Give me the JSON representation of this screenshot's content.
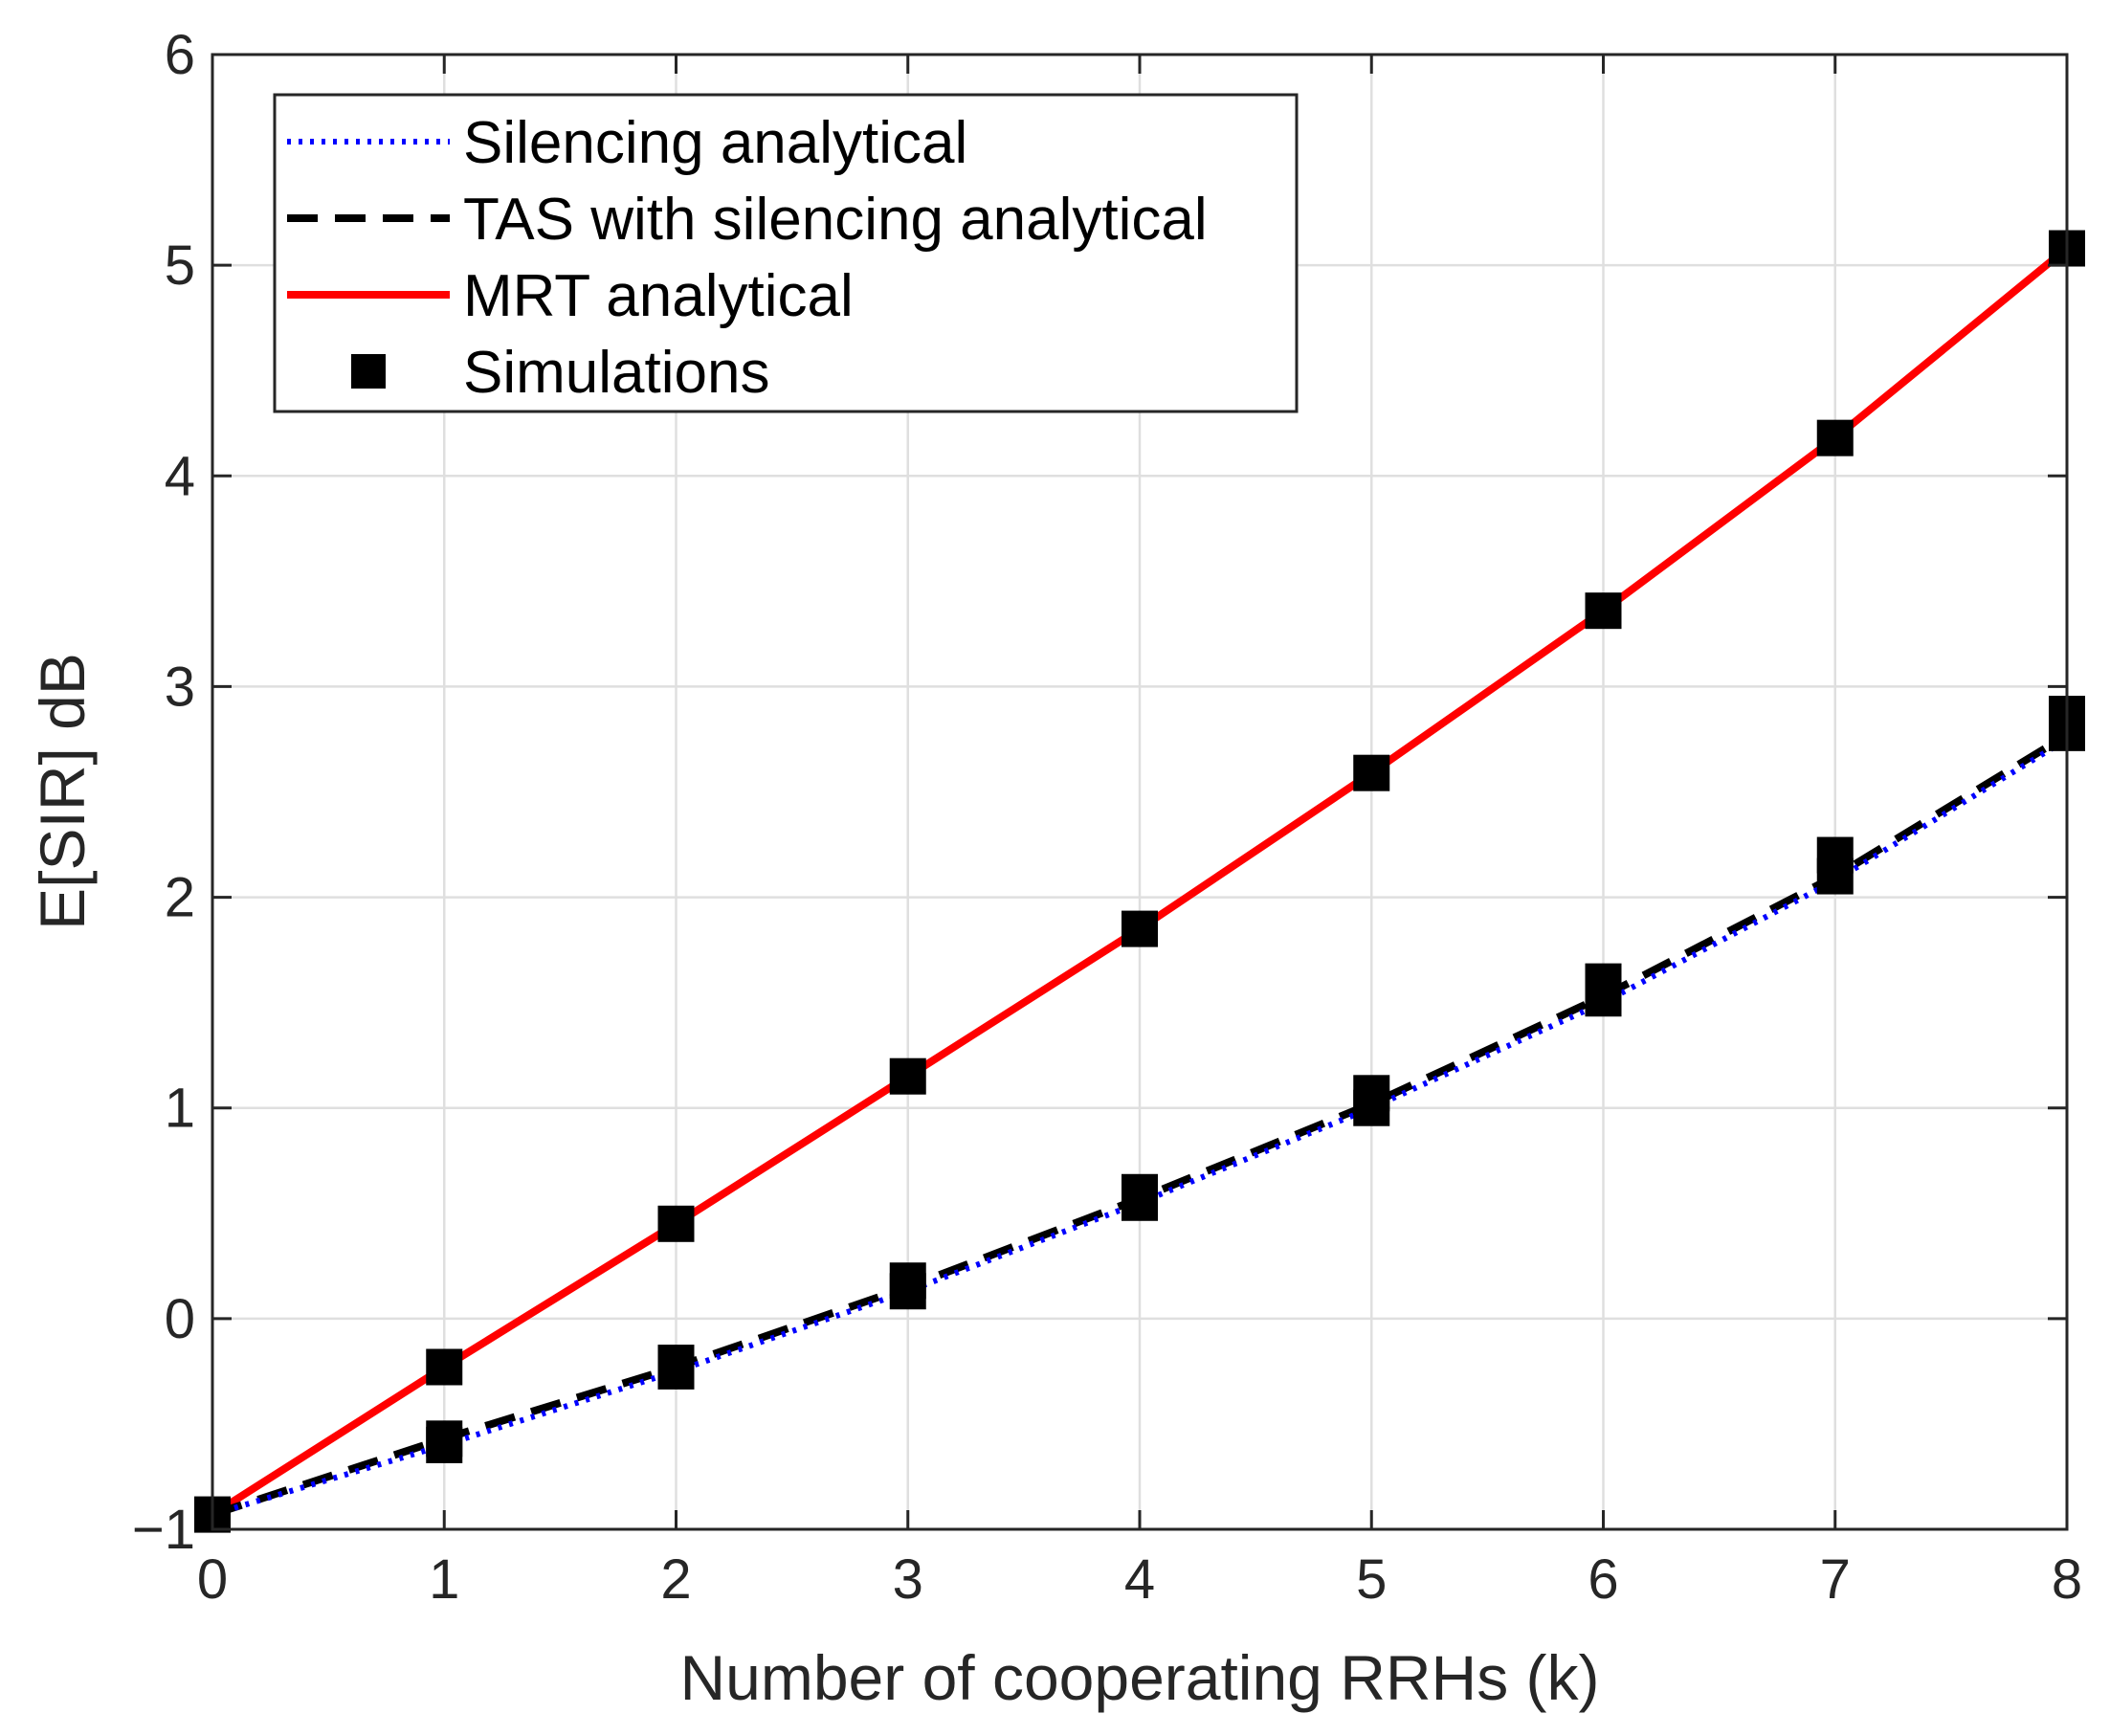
{
  "chart_data": {
    "type": "line",
    "title": "",
    "xlabel": "Number of cooperating RRHs (k)",
    "ylabel": "E[SIR] dB",
    "xlim": [
      0,
      8
    ],
    "ylim": [
      -1,
      6
    ],
    "grid": true,
    "xticks": [
      0,
      1,
      2,
      3,
      4,
      5,
      6,
      7,
      8
    ],
    "yticks": [
      -1,
      0,
      1,
      2,
      3,
      4,
      5,
      6
    ],
    "xtick_labels": [
      "0",
      "1",
      "2",
      "3",
      "4",
      "5",
      "6",
      "7",
      "8"
    ],
    "ytick_labels": [
      "−1",
      "0",
      "1",
      "2",
      "3",
      "4",
      "5",
      "6"
    ],
    "legend_position": "top-left",
    "series": [
      {
        "name": "Silencing analytical",
        "style": "dotted",
        "color": "#0000ff",
        "x": [
          0,
          1,
          2,
          3,
          4,
          5,
          6,
          7,
          8
        ],
        "values": [
          -0.93,
          -0.6,
          -0.25,
          0.13,
          0.55,
          1.0,
          1.5,
          2.08,
          2.75
        ]
      },
      {
        "name": "TAS with silencing analytical",
        "style": "dashed",
        "color": "#000000",
        "x": [
          0,
          1,
          2,
          3,
          4,
          5,
          6,
          7,
          8
        ],
        "values": [
          -0.93,
          -0.57,
          -0.23,
          0.15,
          0.57,
          1.02,
          1.53,
          2.1,
          2.77
        ]
      },
      {
        "name": "MRT analytical",
        "style": "solid",
        "color": "#ff0000",
        "x": [
          0,
          1,
          2,
          3,
          4,
          5,
          6,
          7,
          8
        ],
        "values": [
          -0.93,
          -0.23,
          0.45,
          1.15,
          1.85,
          2.59,
          3.36,
          4.18,
          5.08
        ]
      },
      {
        "name": "Simulations",
        "style": "markers",
        "color": "#000000",
        "x": [
          0,
          1,
          1,
          2,
          2,
          3,
          3,
          4,
          4,
          5,
          5,
          6,
          6,
          7,
          7,
          8,
          8,
          1,
          2,
          3,
          4,
          5,
          6,
          7,
          8
        ],
        "values": [
          -0.93,
          -0.6,
          -0.57,
          -0.25,
          -0.21,
          0.13,
          0.18,
          0.55,
          0.6,
          1.0,
          1.07,
          1.52,
          1.6,
          2.1,
          2.2,
          2.78,
          2.87,
          -0.23,
          0.45,
          1.15,
          1.85,
          2.59,
          3.36,
          4.18,
          5.08
        ]
      }
    ]
  }
}
